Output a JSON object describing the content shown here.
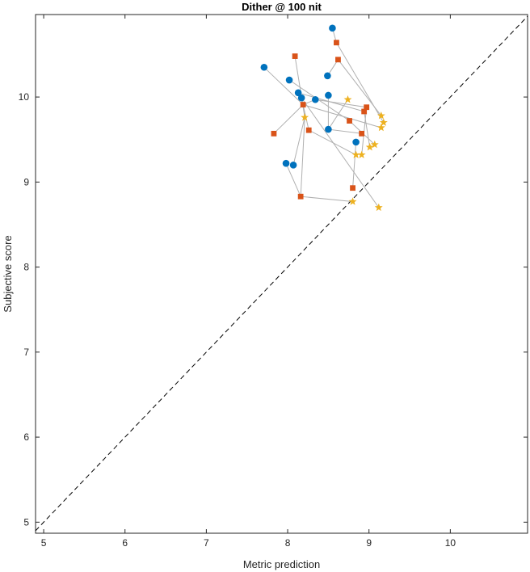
{
  "chart_data": {
    "type": "scatter",
    "title": "Dither @ 100 nit",
    "xlabel": "Metric prediction",
    "ylabel": "Subjective score",
    "xlim": [
      4.9,
      10.95
    ],
    "ylim": [
      4.87,
      10.97
    ],
    "xticks": [
      5,
      6,
      7,
      8,
      9,
      10
    ],
    "yticks": [
      5,
      6,
      7,
      8,
      9,
      10
    ],
    "grid": false,
    "reference_line": "y = x (dashed)",
    "colors": {
      "series1": "#0072BD",
      "series2": "#D95319",
      "series3": "#EDB120",
      "connector": "#b0b0b0",
      "axis": "#262626"
    },
    "series": [
      {
        "marker": "circle",
        "color": "#0072BD",
        "points": [
          [
            8.55,
            10.81
          ],
          [
            7.71,
            10.35
          ],
          [
            8.49,
            10.25
          ],
          [
            8.02,
            10.2
          ],
          [
            8.13,
            10.05
          ],
          [
            8.5,
            10.02
          ],
          [
            8.17,
            9.99
          ],
          [
            8.34,
            9.97
          ],
          [
            8.5,
            9.62
          ],
          [
            8.84,
            9.47
          ],
          [
            7.98,
            9.22
          ],
          [
            8.07,
            9.2
          ]
        ]
      },
      {
        "marker": "square",
        "color": "#D95319",
        "points": [
          [
            8.6,
            10.64
          ],
          [
            8.09,
            10.48
          ],
          [
            8.62,
            10.44
          ],
          [
            8.19,
            9.91
          ],
          [
            8.97,
            9.88
          ],
          [
            8.94,
            9.83
          ],
          [
            8.76,
            9.72
          ],
          [
            8.26,
            9.61
          ],
          [
            7.83,
            9.57
          ],
          [
            8.91,
            9.57
          ],
          [
            8.8,
            8.93
          ],
          [
            8.16,
            8.83
          ]
        ]
      },
      {
        "marker": "star",
        "color": "#EDB120",
        "points": [
          [
            8.74,
            9.97
          ],
          [
            9.15,
            9.78
          ],
          [
            8.21,
            9.76
          ],
          [
            9.18,
            9.7
          ],
          [
            9.15,
            9.64
          ],
          [
            9.07,
            9.44
          ],
          [
            9.01,
            9.41
          ],
          [
            8.84,
            9.32
          ],
          [
            8.91,
            9.32
          ],
          [
            8.8,
            8.77
          ],
          [
            9.12,
            8.7
          ]
        ]
      }
    ],
    "connections": [
      [
        [
          8.55,
          10.81
        ],
        [
          8.6,
          10.64
        ],
        [
          9.18,
          9.7
        ]
      ],
      [
        [
          7.71,
          10.35
        ],
        [
          8.19,
          9.91
        ],
        [
          9.15,
          9.64
        ]
      ],
      [
        [
          8.49,
          10.25
        ],
        [
          8.62,
          10.44
        ],
        [
          9.15,
          9.78
        ]
      ],
      [
        [
          8.02,
          10.2
        ],
        [
          8.76,
          9.72
        ],
        [
          9.07,
          9.44
        ]
      ],
      [
        [
          8.13,
          10.05
        ],
        [
          8.94,
          9.83
        ],
        [
          9.01,
          9.41
        ]
      ],
      [
        [
          8.5,
          10.02
        ],
        [
          8.5,
          9.62
        ],
        [
          8.91,
          9.57
        ]
      ],
      [
        [
          8.17,
          9.99
        ],
        [
          8.26,
          9.61
        ],
        [
          8.84,
          9.32
        ]
      ],
      [
        [
          8.34,
          9.97
        ],
        [
          8.97,
          9.88
        ],
        [
          8.91,
          9.32
        ]
      ],
      [
        [
          8.09,
          10.48
        ],
        [
          8.21,
          9.76
        ],
        [
          8.16,
          8.83
        ],
        [
          8.8,
          8.77
        ]
      ],
      [
        [
          8.5,
          9.62
        ],
        [
          8.74,
          9.97
        ]
      ],
      [
        [
          8.84,
          9.47
        ],
        [
          8.8,
          8.93
        ]
      ],
      [
        [
          7.83,
          9.57
        ],
        [
          8.19,
          9.91
        ],
        [
          8.34,
          9.97
        ]
      ],
      [
        [
          7.98,
          9.22
        ],
        [
          8.16,
          8.83
        ]
      ],
      [
        [
          8.07,
          9.2
        ],
        [
          8.21,
          9.76
        ]
      ],
      [
        [
          8.17,
          9.99
        ],
        [
          9.12,
          8.7
        ]
      ]
    ]
  }
}
